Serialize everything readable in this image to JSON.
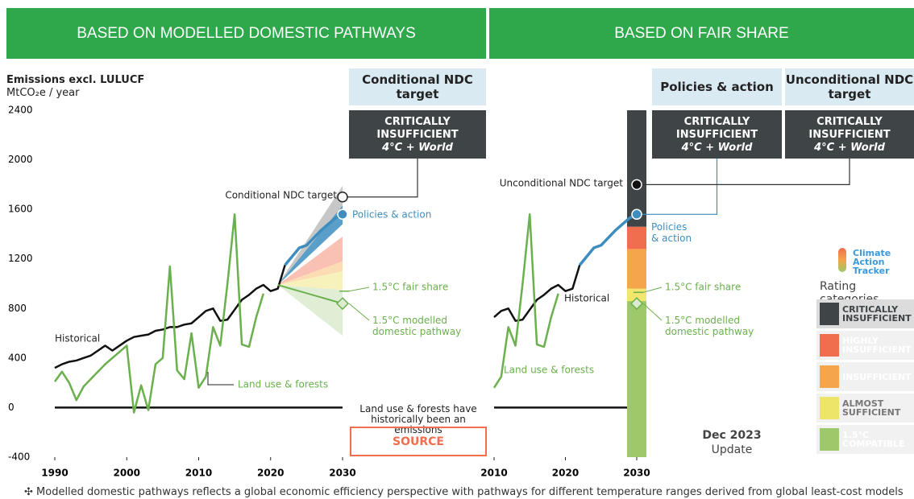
{
  "headers": [
    "BASED ON MODELLED DOMESTIC PATHWAYS",
    "BASED ON FAIR SHARE"
  ],
  "y_title": "Emissions excl. LULUCF",
  "y_unit": "MtCO₂e / year",
  "chart_data": [
    {
      "type": "line",
      "xlim": [
        1990,
        2030
      ],
      "xticks": [
        1990,
        2000,
        2010,
        2020,
        2030
      ],
      "ylim": [
        -400,
        2400
      ],
      "yticks": [
        -400,
        0,
        400,
        800,
        1200,
        1600,
        2000,
        2400
      ],
      "x": [
        1990,
        1991,
        1992,
        1993,
        1994,
        1995,
        1996,
        1997,
        1998,
        1999,
        2000,
        2001,
        2002,
        2003,
        2004,
        2005,
        2006,
        2007,
        2008,
        2009,
        2010,
        2011,
        2012,
        2013,
        2014,
        2015,
        2016,
        2017,
        2018,
        2019,
        2020,
        2021,
        2022,
        2023,
        2024,
        2025,
        2026,
        2027,
        2028,
        2029,
        2030
      ],
      "series": [
        {
          "name": "Historical",
          "color": "#111111",
          "values": [
            320,
            350,
            370,
            380,
            400,
            420,
            460,
            500,
            460,
            500,
            540,
            570,
            580,
            590,
            620,
            630,
            650,
            650,
            670,
            680,
            730,
            780,
            800,
            700,
            710,
            790,
            870,
            910,
            960,
            990,
            940,
            960,
            1150,
            null,
            null,
            null,
            null,
            null,
            null,
            null,
            null
          ]
        },
        {
          "name": "Land use & forests",
          "color": "#6ab04c",
          "values": [
            210,
            290,
            200,
            60,
            170,
            230,
            290,
            350,
            400,
            450,
            500,
            -40,
            180,
            -20,
            350,
            400,
            1140,
            300,
            230,
            600,
            160,
            250,
            650,
            500,
            1000,
            1560,
            510,
            490,
            730,
            920,
            null,
            null,
            null,
            null,
            null,
            null,
            null,
            null,
            null,
            null,
            null
          ]
        },
        {
          "name": "Policies & action",
          "color": "#3d8ebf",
          "values": [
            null,
            null,
            null,
            null,
            null,
            null,
            null,
            null,
            null,
            null,
            null,
            null,
            null,
            null,
            null,
            null,
            null,
            null,
            null,
            null,
            null,
            null,
            null,
            null,
            null,
            null,
            null,
            null,
            null,
            null,
            null,
            null,
            1150,
            1220,
            1290,
            1310,
            1370,
            1430,
            1480,
            1530,
            1560
          ]
        }
      ],
      "band_start": {
        "x": 2021,
        "value": 990
      },
      "pathway_bands": [
        {
          "color": "#bdbdbd",
          "low": 1620,
          "high": 1790
        },
        {
          "color": "#3d8ebf",
          "low": 1480,
          "high": 1630
        },
        {
          "color": "#f7b6a6",
          "low": 1180,
          "high": 1380
        },
        {
          "color": "#fbd6a8",
          "low": 1100,
          "high": 1180
        },
        {
          "color": "#f6efb0",
          "low": 950,
          "high": 1100
        },
        {
          "color": "#dcebcf",
          "low": 580,
          "high": 950
        }
      ],
      "markers": [
        {
          "name": "Conditional NDC target",
          "x": 2030,
          "value": 1700,
          "shape": "open-circle",
          "color": "#222222"
        },
        {
          "name": "Policies & action",
          "x": 2030,
          "value": 1560,
          "shape": "circle",
          "color": "#3d8ebf"
        },
        {
          "name": "1.5°C fair share",
          "x": 2030,
          "value": 940,
          "shape": "none",
          "color": "#6ab04c"
        },
        {
          "name": "1.5°C modelled domestic pathway",
          "x": 2030,
          "value": 840,
          "shape": "diamond",
          "color": "#6ab04c"
        }
      ],
      "ratings": [
        {
          "target": "Conditional NDC target",
          "rating": "CRITICALLY INSUFFICIENT",
          "temperature": "4°C + World"
        }
      ],
      "note": "Land use & forests have historically been an emissions",
      "note_box": "SOURCE"
    },
    {
      "type": "line",
      "xlim": [
        2010,
        2030
      ],
      "xticks": [
        2010,
        2020,
        2030
      ],
      "ylim": [
        -400,
        2400
      ],
      "x": [
        2010,
        2011,
        2012,
        2013,
        2014,
        2015,
        2016,
        2017,
        2018,
        2019,
        2020,
        2021,
        2022,
        2023,
        2024,
        2025,
        2026,
        2027,
        2028,
        2029,
        2030
      ],
      "series": [
        {
          "name": "Historical",
          "color": "#111111",
          "values": [
            730,
            780,
            800,
            700,
            710,
            790,
            870,
            910,
            960,
            990,
            940,
            960,
            1150,
            null,
            null,
            null,
            null,
            null,
            null,
            null,
            null
          ]
        },
        {
          "name": "Land use & forests",
          "color": "#6ab04c",
          "values": [
            160,
            250,
            650,
            500,
            1000,
            1560,
            510,
            490,
            730,
            920,
            null,
            null,
            null,
            null,
            null,
            null,
            null,
            null,
            null,
            null,
            null
          ]
        },
        {
          "name": "Policies & action",
          "color": "#3d8ebf",
          "values": [
            null,
            null,
            null,
            null,
            null,
            null,
            null,
            null,
            null,
            null,
            null,
            null,
            1150,
            1220,
            1290,
            1310,
            1370,
            1430,
            1480,
            1530,
            1560
          ]
        }
      ],
      "fair_share_ranges": [
        {
          "color": "#9dc96a",
          "low": -400,
          "high": 860
        },
        {
          "color": "#f2e66e",
          "low": 860,
          "high": 960
        },
        {
          "color": "#f5a54a",
          "low": 960,
          "high": 1280
        },
        {
          "color": "#f06e4e",
          "low": 1280,
          "high": 1460
        },
        {
          "color": "#3f4447",
          "low": 1460,
          "high": 2400
        }
      ],
      "markers": [
        {
          "name": "Unconditional NDC target",
          "x": 2030,
          "value": 1800,
          "shape": "circle",
          "color": "#111111"
        },
        {
          "name": "Policies & action",
          "x": 2030,
          "value": 1560,
          "shape": "circle",
          "color": "#3d8ebf"
        },
        {
          "name": "1.5°C fair share",
          "x": 2030,
          "value": 930,
          "shape": "none",
          "color": "#6ab04c"
        },
        {
          "name": "1.5°C modelled domestic pathway",
          "x": 2030,
          "value": 840,
          "shape": "diamond",
          "color": "#6ab04c"
        }
      ],
      "ratings": [
        {
          "target": "Policies & action",
          "rating": "CRITICALLY INSUFFICIENT",
          "temperature": "4°C + World"
        },
        {
          "target": "Unconditional NDC target",
          "rating": "CRITICALLY INSUFFICIENT",
          "temperature": "4°C + World"
        }
      ]
    }
  ],
  "legend": {
    "logo": "Climate Action Tracker",
    "title": "Rating categories",
    "items": [
      {
        "name": "CRITICALLY INSUFFICIENT",
        "color": "#3f4447",
        "text_color": "#3f4447"
      },
      {
        "name": "HIGHLY INSUFFICIENT",
        "color": "#f06e4e",
        "text_color": "#ffffff"
      },
      {
        "name": "INSUFFICIENT",
        "color": "#f5a54a",
        "text_color": "#ffffff"
      },
      {
        "name": "ALMOST SUFFICIENT",
        "color": "#ede56a",
        "text_color": "#777777"
      },
      {
        "name": "1.5°C COMPATIBLE",
        "color": "#9dc96a",
        "text_color": "#ffffff"
      }
    ]
  },
  "update": {
    "date": "Dec 2023",
    "label": "Update"
  },
  "footnote": "✣ Modelled domestic pathways reflects a global economic efficiency perspective with pathways for different temperature ranges derived from global least-cost models"
}
